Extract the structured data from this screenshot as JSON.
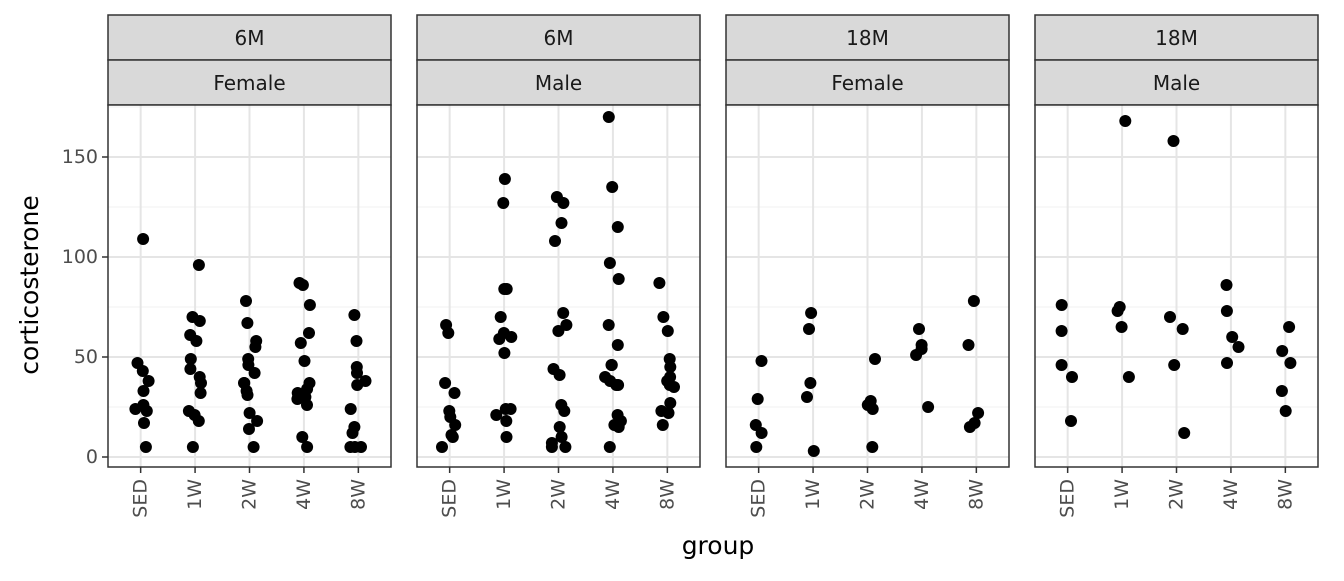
{
  "chart_data": {
    "type": "scatter",
    "title": "",
    "xlabel": "group",
    "ylabel": "corticosterone",
    "categories": [
      "SED",
      "1W",
      "2W",
      "4W",
      "8W"
    ],
    "ylim": [
      -5,
      176
    ],
    "yticks": [
      0,
      50,
      100,
      150
    ],
    "grid": true,
    "legend": "none",
    "point_color": "#000000",
    "panels": [
      {
        "age": "6M",
        "sex": "Female",
        "points": {
          "SED": [
            109,
            47,
            43,
            38,
            33,
            26,
            24,
            23,
            17,
            5
          ],
          "1W": [
            96,
            70,
            68,
            61,
            58,
            49,
            44,
            40,
            37,
            32,
            23,
            21,
            18,
            5
          ],
          "2W": [
            78,
            67,
            58,
            55,
            49,
            46,
            42,
            37,
            37,
            33,
            31,
            22,
            18,
            14,
            5
          ],
          "4W": [
            87,
            86,
            76,
            62,
            57,
            48,
            37,
            34,
            32,
            30,
            29,
            26,
            10,
            5
          ],
          "8W": [
            71,
            58,
            45,
            42,
            38,
            36,
            24,
            15,
            12,
            5,
            5,
            5
          ]
        }
      },
      {
        "age": "6M",
        "sex": "Male",
        "points": {
          "SED": [
            66,
            62,
            37,
            32,
            23,
            20,
            16,
            11,
            10,
            5
          ],
          "1W": [
            139,
            127,
            84,
            84,
            70,
            62,
            60,
            59,
            52,
            24,
            24,
            21,
            18,
            10
          ],
          "2W": [
            130,
            127,
            117,
            108,
            72,
            66,
            63,
            44,
            41,
            26,
            23,
            15,
            10,
            7,
            5,
            5
          ],
          "4W": [
            170,
            135,
            115,
            97,
            89,
            66,
            56,
            46,
            46,
            40,
            38,
            36,
            36,
            21,
            18,
            16,
            15,
            5
          ],
          "8W": [
            87,
            70,
            63,
            49,
            45,
            40,
            38,
            36,
            35,
            27,
            23,
            22,
            16
          ]
        }
      },
      {
        "age": "18M",
        "sex": "Female",
        "points": {
          "SED": [
            48,
            29,
            16,
            12,
            5
          ],
          "1W": [
            72,
            64,
            37,
            30,
            3
          ],
          "2W": [
            49,
            28,
            26,
            24,
            5
          ],
          "4W": [
            64,
            56,
            54,
            51,
            25
          ],
          "8W": [
            78,
            56,
            22,
            17,
            15
          ]
        }
      },
      {
        "age": "18M",
        "sex": "Male",
        "points": {
          "SED": [
            76,
            63,
            46,
            40,
            18
          ],
          "1W": [
            168,
            75,
            73,
            65,
            40
          ],
          "2W": [
            158,
            70,
            64,
            46,
            12
          ],
          "4W": [
            86,
            73,
            60,
            55,
            47
          ],
          "8W": [
            65,
            53,
            47,
            33,
            23
          ]
        }
      }
    ]
  }
}
